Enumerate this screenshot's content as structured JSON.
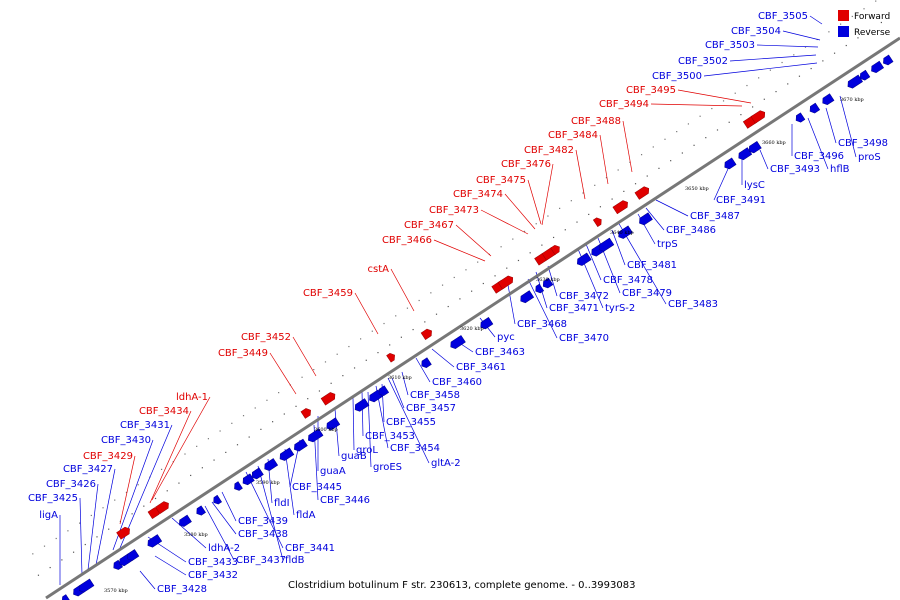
{
  "caption": "Clostridium botulinum F str. 230613, complete genome. - 0..3993083",
  "colors": {
    "forward": "#e00000",
    "reverse": "#0000dd",
    "backbone": "#777777"
  },
  "legend": [
    {
      "label": "Forward",
      "color": "#e00000"
    },
    {
      "label": "Reverse",
      "color": "#0000dd"
    }
  ],
  "ticks": [
    "3570 kbp",
    "3580 kbp",
    "3590 kbp",
    "3600 kbp",
    "3610 kbp",
    "3620 kbp",
    "3630 kbp",
    "3640 kbp",
    "3650 kbp",
    "3660 kbp",
    "3670 kbp"
  ],
  "forward_labels": [
    "ldhA-1",
    "CBF_3434",
    "CBF_3429",
    "CBF_3449",
    "CBF_3452",
    "CBF_3459",
    "cstA",
    "CBF_3466",
    "CBF_3467",
    "CBF_3473",
    "CBF_3474",
    "CBF_3475",
    "CBF_3476",
    "CBF_3482",
    "CBF_3484",
    "CBF_3488",
    "CBF_3494",
    "CBF_3495"
  ],
  "reverse_labels_upper": [
    "CBF_3431",
    "CBF_3430",
    "CBF_3427",
    "CBF_3426",
    "CBF_3425",
    "ligA",
    "CBF_3505",
    "CBF_3504",
    "CBF_3503",
    "CBF_3502",
    "CBF_3500"
  ],
  "reverse_labels_lower": [
    "CBF_3428",
    "CBF_3432",
    "CBF_3433",
    "ldhA-2",
    "CBF_3437",
    "CBF_3438",
    "CBF_3439",
    "fldB",
    "CBF_3441",
    "fldI",
    "fldA",
    "CBF_3445",
    "CBF_3446",
    "guaA",
    "guaB",
    "groL",
    "groES",
    "CBF_3453",
    "CBF_3454",
    "gltA-2",
    "CBF_3455",
    "CBF_3457",
    "CBF_3458",
    "CBF_3460",
    "CBF_3461",
    "CBF_3463",
    "pyc",
    "CBF_3468",
    "CBF_3470",
    "CBF_3471",
    "CBF_3472",
    "tyrS-2",
    "CBF_3478",
    "CBF_3479",
    "CBF_3483",
    "CBF_3481",
    "trpS",
    "CBF_3486",
    "CBF_3487",
    "CBF_3491",
    "lysC",
    "CBF_3493",
    "CBF_3496",
    "hflB",
    "CBF_3498",
    "proS"
  ]
}
